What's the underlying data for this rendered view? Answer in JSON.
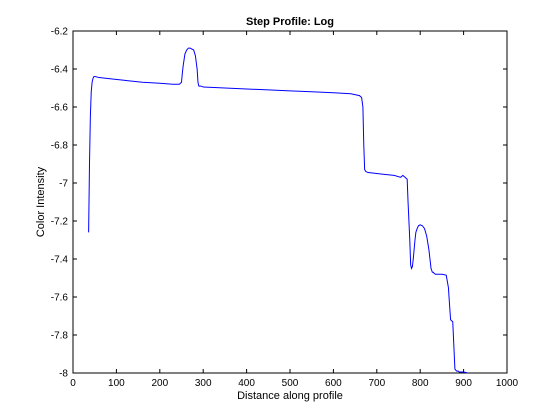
{
  "chart_data": {
    "type": "line",
    "title": "Step Profile: Log",
    "xlabel": "Distance along profile",
    "ylabel": "Color Intensity",
    "xlim": [
      0,
      1000
    ],
    "ylim": [
      -8,
      -6.2
    ],
    "xticks": [
      0,
      100,
      200,
      300,
      400,
      500,
      600,
      700,
      800,
      900,
      1000
    ],
    "yticks": [
      -6.2,
      -6.4,
      -6.6,
      -6.8,
      -7,
      -7.2,
      -7.4,
      -7.6,
      -7.8,
      -8
    ],
    "xtick_labels": [
      "0",
      "100",
      "200",
      "300",
      "400",
      "500",
      "600",
      "700",
      "800",
      "900",
      "1000"
    ],
    "ytick_labels": [
      "-6.2",
      "-6.4",
      "-6.6",
      "-6.8",
      "-7",
      "-7.2",
      "-7.4",
      "-7.6",
      "-7.8",
      "-8"
    ],
    "grid": false,
    "line_color": "#0000ff",
    "series": [
      {
        "x": [
          36,
          38,
          40,
          42,
          44,
          46,
          48,
          52,
          60,
          80,
          120,
          160,
          200,
          230,
          245,
          250,
          252,
          254,
          256,
          258,
          262,
          266,
          270,
          274,
          278,
          282,
          286,
          288,
          290,
          292,
          295,
          300,
          350,
          400,
          450,
          500,
          550,
          600,
          640,
          660,
          665,
          668,
          670,
          672,
          675,
          680,
          700,
          720,
          740,
          755,
          760,
          765,
          770,
          772,
          774,
          776,
          778,
          780,
          782,
          784,
          786,
          788,
          790,
          793,
          796,
          800,
          805,
          810,
          815,
          820,
          825,
          828,
          830,
          832,
          835,
          840,
          850,
          860,
          865,
          867,
          870,
          875,
          880,
          882,
          884,
          886,
          888,
          890,
          900,
          910
        ],
        "y": [
          -7.26,
          -6.9,
          -6.65,
          -6.52,
          -6.47,
          -6.45,
          -6.44,
          -6.44,
          -6.445,
          -6.45,
          -6.46,
          -6.47,
          -6.475,
          -6.48,
          -6.48,
          -6.47,
          -6.42,
          -6.38,
          -6.35,
          -6.32,
          -6.3,
          -6.29,
          -6.29,
          -6.295,
          -6.3,
          -6.33,
          -6.4,
          -6.47,
          -6.49,
          -6.49,
          -6.49,
          -6.495,
          -6.5,
          -6.505,
          -6.51,
          -6.515,
          -6.52,
          -6.525,
          -6.53,
          -6.54,
          -6.55,
          -6.6,
          -6.8,
          -6.93,
          -6.94,
          -6.945,
          -6.95,
          -6.955,
          -6.96,
          -6.97,
          -6.96,
          -6.97,
          -6.98,
          -7.1,
          -7.2,
          -7.3,
          -7.43,
          -7.45,
          -7.44,
          -7.4,
          -7.35,
          -7.3,
          -7.26,
          -7.24,
          -7.225,
          -7.22,
          -7.225,
          -7.24,
          -7.28,
          -7.35,
          -7.45,
          -7.47,
          -7.47,
          -7.475,
          -7.48,
          -7.48,
          -7.48,
          -7.485,
          -7.55,
          -7.62,
          -7.72,
          -7.73,
          -7.98,
          -7.985,
          -7.99,
          -7.99,
          -7.99,
          -7.995,
          -7.995,
          -8.0
        ]
      }
    ]
  }
}
